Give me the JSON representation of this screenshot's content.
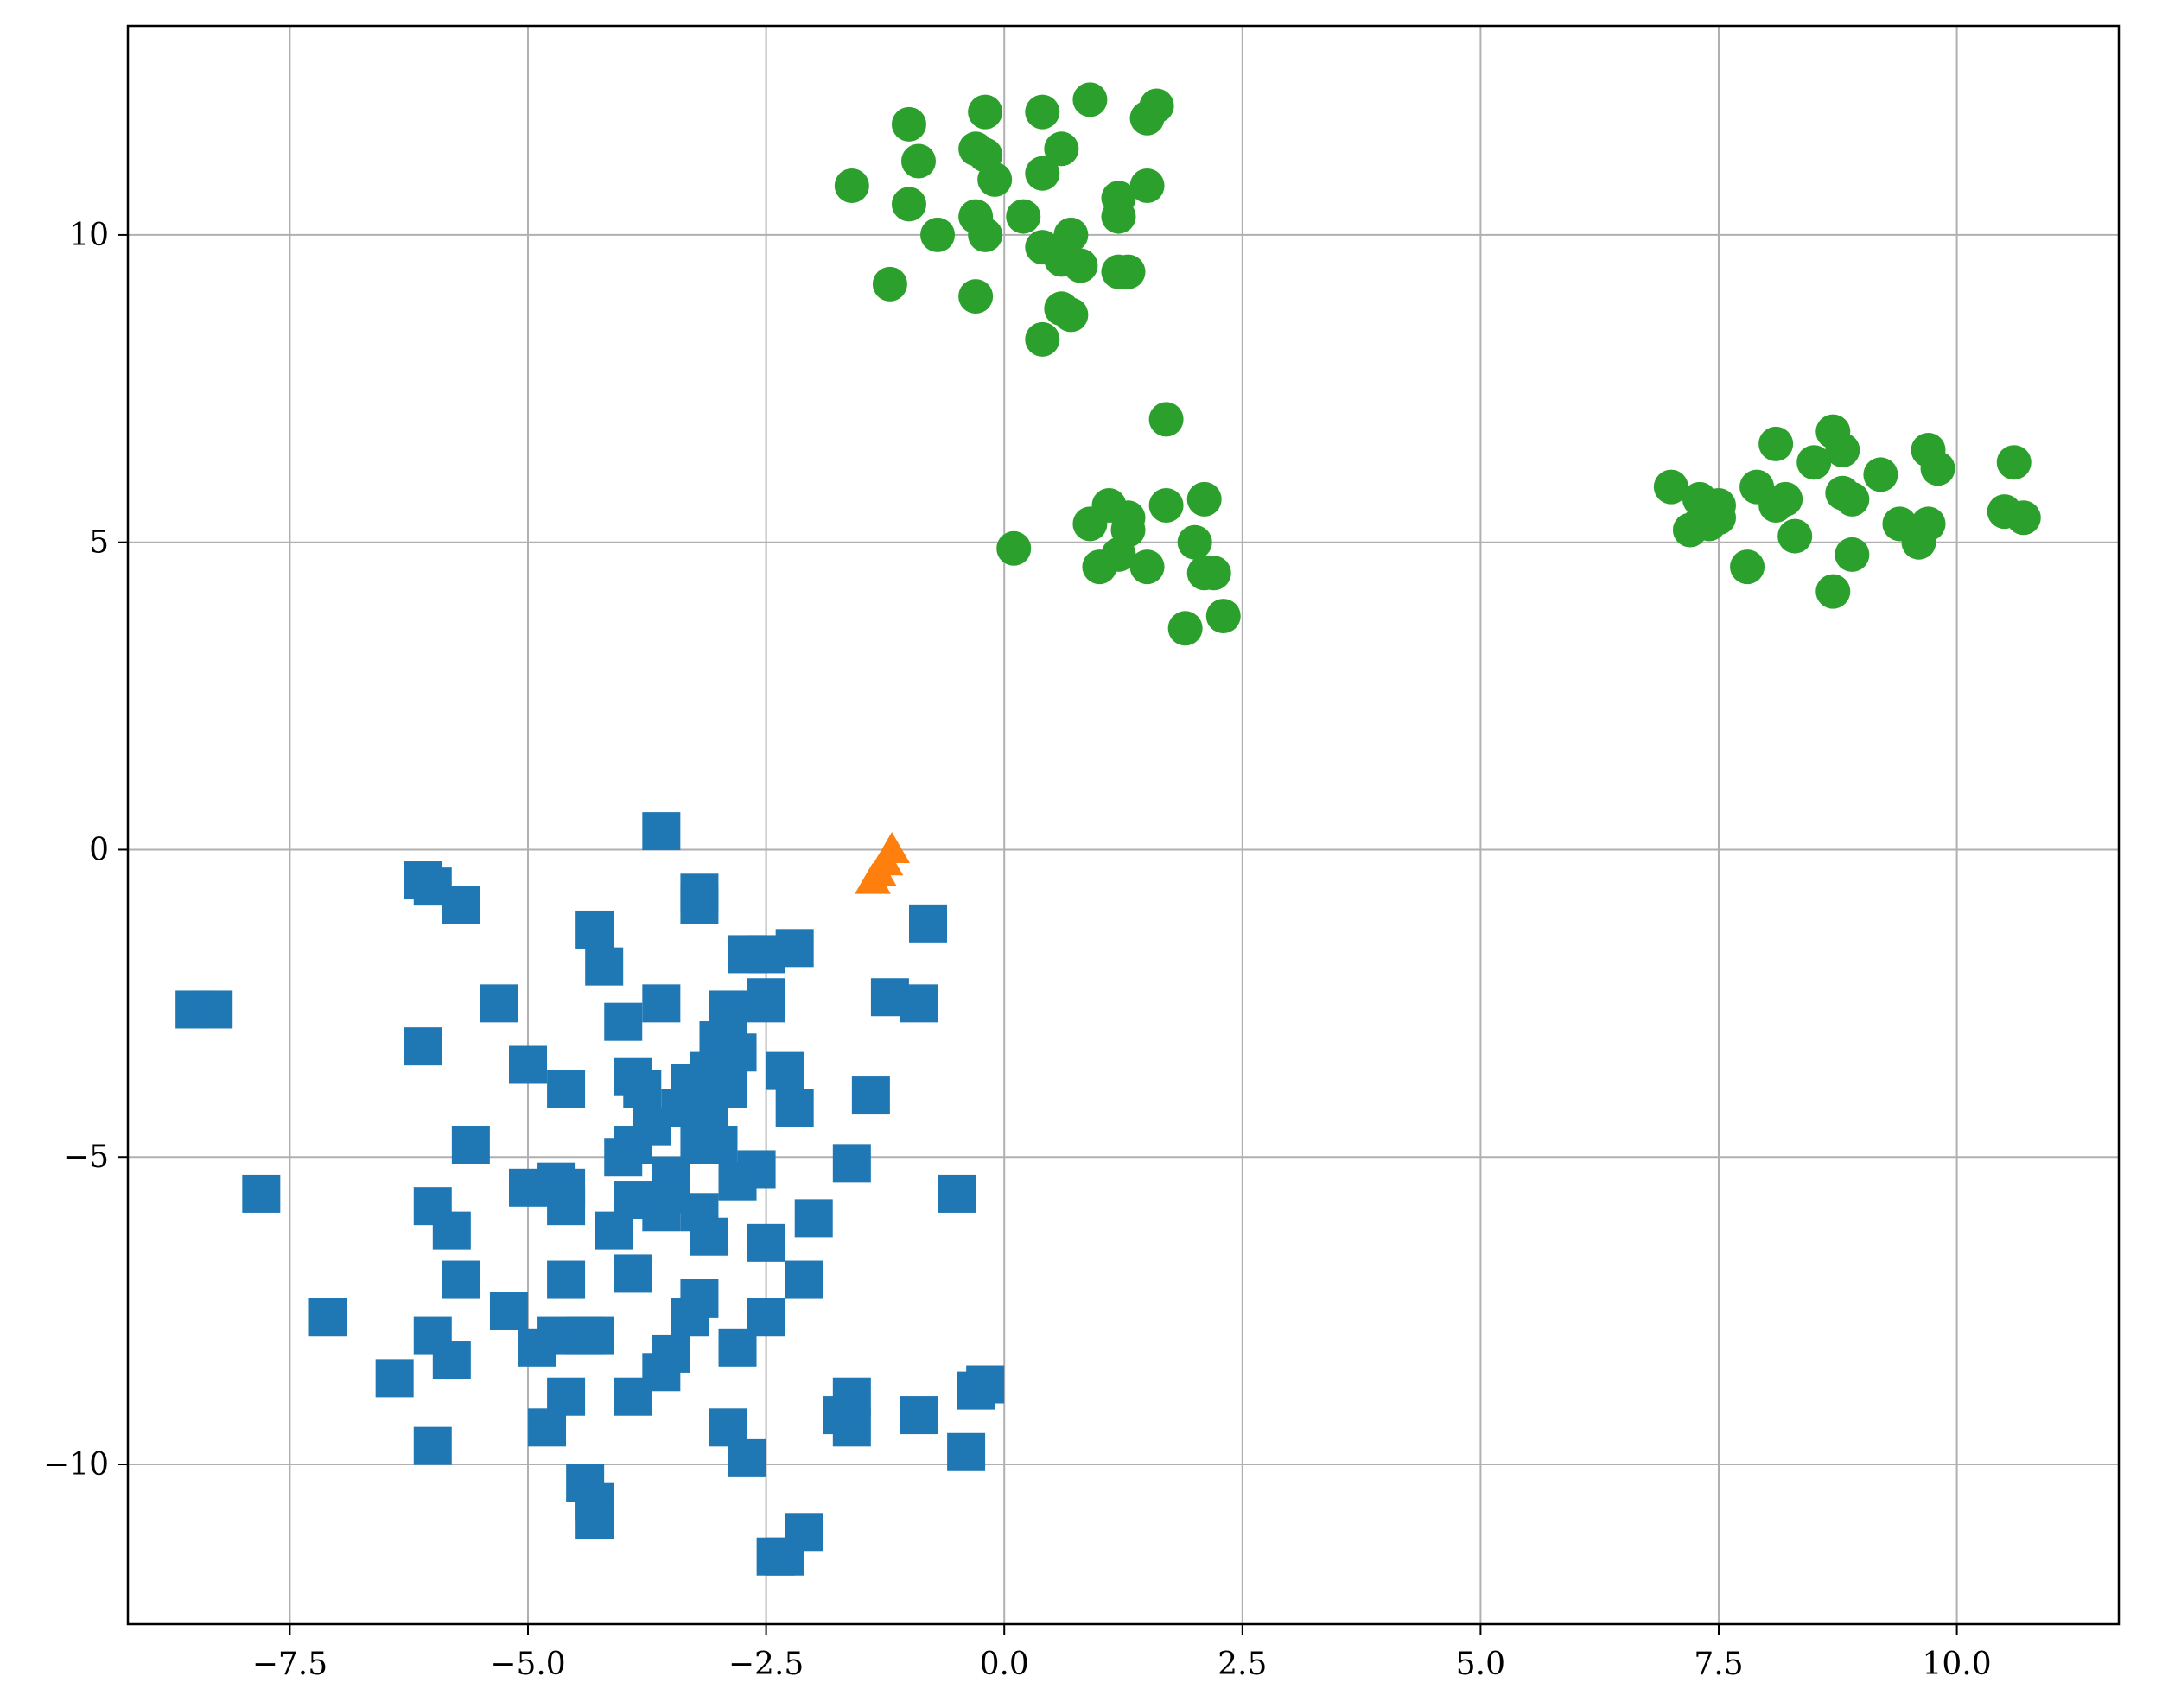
{
  "chart_data": {
    "type": "scatter",
    "title": "",
    "xlabel": "",
    "ylabel": "",
    "xlim": [
      -9.2,
      11.7
    ],
    "ylim": [
      -12.6,
      13.4
    ],
    "grid": true,
    "legend": "none",
    "x_ticks": [
      {
        "value": -7.5,
        "label": "−7.5"
      },
      {
        "value": -5.0,
        "label": "−5.0"
      },
      {
        "value": -2.5,
        "label": "−2.5"
      },
      {
        "value": 0.0,
        "label": "0.0"
      },
      {
        "value": 2.5,
        "label": "2.5"
      },
      {
        "value": 5.0,
        "label": "5.0"
      },
      {
        "value": 7.5,
        "label": "7.5"
      },
      {
        "value": 10.0,
        "label": "10.0"
      }
    ],
    "y_ticks": [
      {
        "value": -10,
        "label": "−10"
      },
      {
        "value": -5,
        "label": "−5"
      },
      {
        "value": 0,
        "label": "0"
      },
      {
        "value": 5,
        "label": "5"
      },
      {
        "value": 10,
        "label": "10"
      }
    ],
    "series": [
      {
        "marker": "square",
        "color": "#1f77b4",
        "points": [
          [
            -3.6,
            0.3
          ],
          [
            -6.1,
            -0.5
          ],
          [
            -6.0,
            -0.6
          ],
          [
            -3.2,
            -0.7
          ],
          [
            -3.2,
            -0.9
          ],
          [
            -5.7,
            -0.9
          ],
          [
            -4.3,
            -1.3
          ],
          [
            -0.8,
            -1.2
          ],
          [
            -4.2,
            -1.9
          ],
          [
            -2.7,
            -1.7
          ],
          [
            -2.5,
            -1.7
          ],
          [
            -2.2,
            -1.6
          ],
          [
            -8.5,
            -2.6
          ],
          [
            -8.3,
            -2.6
          ],
          [
            -5.3,
            -2.5
          ],
          [
            -3.6,
            -2.5
          ],
          [
            -2.9,
            -2.6
          ],
          [
            -2.5,
            -2.4
          ],
          [
            -2.5,
            -2.5
          ],
          [
            -1.2,
            -2.4
          ],
          [
            -0.9,
            -2.5
          ],
          [
            -6.1,
            -3.2
          ],
          [
            -4.0,
            -2.8
          ],
          [
            -2.9,
            -2.8
          ],
          [
            -3.0,
            -3.1
          ],
          [
            -2.8,
            -3.3
          ],
          [
            -5.0,
            -3.5
          ],
          [
            -3.9,
            -3.7
          ],
          [
            -3.8,
            -3.9
          ],
          [
            -3.3,
            -3.8
          ],
          [
            -3.1,
            -3.6
          ],
          [
            -2.9,
            -3.9
          ],
          [
            -2.3,
            -3.6
          ],
          [
            -4.6,
            -3.9
          ],
          [
            -3.4,
            -4.2
          ],
          [
            -3.1,
            -4.3
          ],
          [
            -2.2,
            -4.2
          ],
          [
            -1.4,
            -4.0
          ],
          [
            -3.7,
            -4.5
          ],
          [
            -3.9,
            -4.8
          ],
          [
            -5.6,
            -4.8
          ],
          [
            -3.2,
            -4.8
          ],
          [
            -3.0,
            -4.8
          ],
          [
            -4.0,
            -5.0
          ],
          [
            -3.5,
            -5.3
          ],
          [
            -2.6,
            -5.2
          ],
          [
            -2.8,
            -5.4
          ],
          [
            -1.6,
            -5.1
          ],
          [
            -5.0,
            -5.5
          ],
          [
            -4.7,
            -5.4
          ],
          [
            -4.6,
            -5.5
          ],
          [
            -7.8,
            -5.6
          ],
          [
            -3.5,
            -5.6
          ],
          [
            -3.9,
            -5.7
          ],
          [
            -4.6,
            -5.8
          ],
          [
            -6.0,
            -5.8
          ],
          [
            -3.6,
            -5.9
          ],
          [
            -3.2,
            -5.9
          ],
          [
            -3.1,
            -6.3
          ],
          [
            -4.1,
            -6.2
          ],
          [
            -5.8,
            -6.2
          ],
          [
            -2.0,
            -6.0
          ],
          [
            -2.5,
            -6.4
          ],
          [
            -0.5,
            -5.6
          ],
          [
            -3.9,
            -6.9
          ],
          [
            -5.7,
            -7.0
          ],
          [
            -4.6,
            -7.0
          ],
          [
            -2.1,
            -7.0
          ],
          [
            -7.1,
            -7.6
          ],
          [
            -5.2,
            -7.5
          ],
          [
            -3.3,
            -7.6
          ],
          [
            -3.2,
            -7.3
          ],
          [
            -2.5,
            -7.6
          ],
          [
            -6.0,
            -7.9
          ],
          [
            -4.9,
            -8.1
          ],
          [
            -4.7,
            -7.9
          ],
          [
            -4.4,
            -7.9
          ],
          [
            -4.3,
            -7.9
          ],
          [
            -5.8,
            -8.3
          ],
          [
            -3.6,
            -8.5
          ],
          [
            -3.5,
            -8.2
          ],
          [
            -2.8,
            -8.1
          ],
          [
            -6.4,
            -8.6
          ],
          [
            -4.6,
            -8.9
          ],
          [
            -3.9,
            -8.9
          ],
          [
            -1.6,
            -8.9
          ],
          [
            -1.7,
            -9.2
          ],
          [
            -1.6,
            -9.4
          ],
          [
            -0.9,
            -9.2
          ],
          [
            -0.3,
            -8.8
          ],
          [
            -0.2,
            -8.7
          ],
          [
            -4.8,
            -9.4
          ],
          [
            -2.9,
            -9.4
          ],
          [
            -6.0,
            -9.7
          ],
          [
            -2.7,
            -9.9
          ],
          [
            -0.4,
            -9.8
          ],
          [
            -4.4,
            -10.3
          ],
          [
            -4.3,
            -10.6
          ],
          [
            -4.3,
            -10.9
          ],
          [
            -2.1,
            -11.1
          ],
          [
            -2.3,
            -11.5
          ],
          [
            -2.4,
            -11.5
          ]
        ]
      },
      {
        "marker": "triangle",
        "color": "#ff7f0e",
        "points": [
          [
            -1.18,
            -0.05
          ],
          [
            -1.25,
            -0.25
          ],
          [
            -1.32,
            -0.42
          ],
          [
            -1.38,
            -0.55
          ]
        ]
      },
      {
        "marker": "circle",
        "color": "#2ca02c",
        "points": [
          [
            0.9,
            12.2
          ],
          [
            1.6,
            12.1
          ],
          [
            1.5,
            11.9
          ],
          [
            -0.2,
            12.0
          ],
          [
            0.4,
            12.0
          ],
          [
            -1.0,
            11.8
          ],
          [
            -0.3,
            11.4
          ],
          [
            -0.2,
            11.3
          ],
          [
            0.6,
            11.4
          ],
          [
            -0.9,
            11.2
          ],
          [
            0.4,
            11.0
          ],
          [
            -0.1,
            10.9
          ],
          [
            -1.6,
            10.8
          ],
          [
            1.5,
            10.8
          ],
          [
            1.2,
            10.6
          ],
          [
            -1.0,
            10.5
          ],
          [
            1.2,
            10.3
          ],
          [
            -0.3,
            10.3
          ],
          [
            0.2,
            10.3
          ],
          [
            -0.2,
            10.0
          ],
          [
            0.7,
            10.0
          ],
          [
            -0.7,
            10.0
          ],
          [
            0.4,
            9.8
          ],
          [
            0.6,
            9.6
          ],
          [
            0.8,
            9.5
          ],
          [
            1.2,
            9.4
          ],
          [
            1.3,
            9.4
          ],
          [
            -1.2,
            9.2
          ],
          [
            -0.3,
            9.0
          ],
          [
            0.6,
            8.8
          ],
          [
            0.7,
            8.7
          ],
          [
            0.4,
            8.3
          ],
          [
            1.7,
            7.0
          ],
          [
            1.1,
            5.6
          ],
          [
            1.7,
            5.6
          ],
          [
            2.1,
            5.7
          ],
          [
            0.9,
            5.3
          ],
          [
            1.3,
            5.4
          ],
          [
            1.3,
            5.2
          ],
          [
            2.0,
            5.0
          ],
          [
            0.1,
            4.9
          ],
          [
            1.2,
            4.8
          ],
          [
            1.0,
            4.6
          ],
          [
            1.5,
            4.6
          ],
          [
            2.1,
            4.5
          ],
          [
            2.2,
            4.5
          ],
          [
            2.3,
            3.8
          ],
          [
            1.9,
            3.6
          ],
          [
            8.7,
            6.8
          ],
          [
            8.1,
            6.6
          ],
          [
            9.7,
            6.5
          ],
          [
            10.6,
            6.3
          ],
          [
            8.8,
            6.5
          ],
          [
            8.5,
            6.3
          ],
          [
            9.8,
            6.2
          ],
          [
            9.2,
            6.1
          ],
          [
            7.0,
            5.9
          ],
          [
            7.9,
            5.9
          ],
          [
            8.1,
            5.6
          ],
          [
            8.2,
            5.7
          ],
          [
            8.8,
            5.8
          ],
          [
            8.9,
            5.7
          ],
          [
            7.3,
            5.7
          ],
          [
            7.5,
            5.6
          ],
          [
            7.5,
            5.4
          ],
          [
            7.3,
            5.3
          ],
          [
            7.2,
            5.2
          ],
          [
            7.4,
            5.3
          ],
          [
            10.5,
            5.5
          ],
          [
            10.7,
            5.4
          ],
          [
            9.4,
            5.3
          ],
          [
            9.7,
            5.3
          ],
          [
            8.3,
            5.1
          ],
          [
            9.6,
            5.0
          ],
          [
            8.9,
            4.8
          ],
          [
            7.8,
            4.6
          ],
          [
            8.7,
            4.2
          ]
        ]
      }
    ]
  }
}
